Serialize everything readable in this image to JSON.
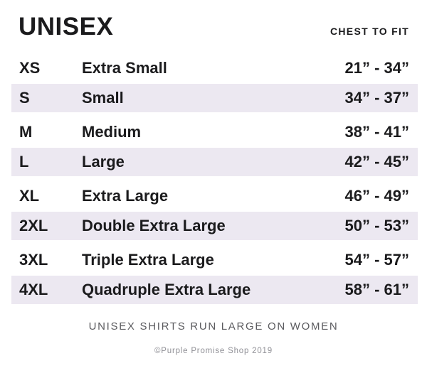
{
  "header": {
    "title": "UNISEX",
    "column_label": "CHEST TO FIT"
  },
  "size_table": {
    "rows": [
      {
        "code": "XS",
        "name": "Extra Small",
        "range": "21” - 34”"
      },
      {
        "code": "S",
        "name": "Small",
        "range": "34” - 37”"
      },
      {
        "code": "M",
        "name": "Medium",
        "range": "38” - 41”"
      },
      {
        "code": "L",
        "name": "Large",
        "range": "42” - 45”"
      },
      {
        "code": "XL",
        "name": "Extra Large",
        "range": "46” - 49”"
      },
      {
        "code": "2XL",
        "name": "Double Extra Large",
        "range": "50” - 53”"
      },
      {
        "code": "3XL",
        "name": "Triple Extra Large",
        "range": "54” - 57”"
      },
      {
        "code": "4XL",
        "name": "Quadruple Extra Large",
        "range": "58” - 61”"
      }
    ]
  },
  "footer": {
    "note": "UNISEX SHIRTS RUN LARGE ON WOMEN",
    "copyright": "©Purple Promise Shop 2019"
  },
  "colors": {
    "text": "#1b1b1d",
    "row_shade": "#ece8f1",
    "note_gray": "#5b5b5f",
    "copyright_gray": "#909096",
    "background": "#ffffff"
  }
}
